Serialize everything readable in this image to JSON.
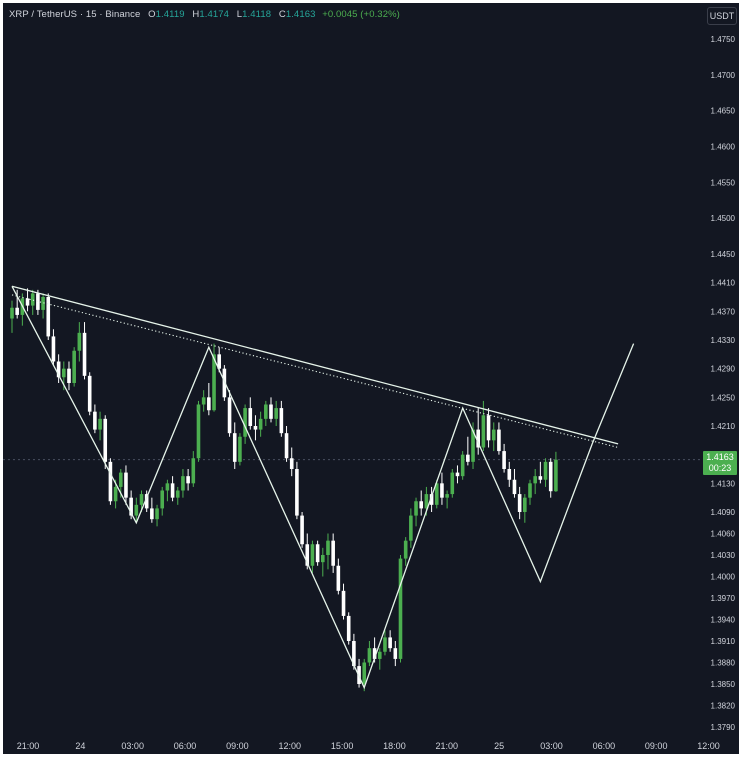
{
  "header": {
    "symbol": "XRP / TetherUS · 15 · Binance",
    "open_label": "O",
    "open": "1.4119",
    "high_label": "H",
    "high": "1.4174",
    "low_label": "L",
    "low": "1.4118",
    "close_label": "C",
    "close": "1.4163",
    "change": "+0.0045 (+0.32%)"
  },
  "currency": "USDT",
  "last_price": {
    "price": "1.4163",
    "countdown": "00:23"
  },
  "colors": {
    "background": "#131722",
    "up": "#4caf50",
    "down": "#ffffff",
    "pattern_line": "#e6f4ea",
    "grid": "#1c2030"
  },
  "chart_data": {
    "type": "candlestick",
    "title": "",
    "xlabel": "",
    "ylabel": "",
    "ylim": [
      1.3775,
      1.477
    ],
    "y_ticks": [
      "1.4750",
      "1.4700",
      "1.4650",
      "1.4600",
      "1.4550",
      "1.4500",
      "1.4450",
      "1.4410",
      "1.4370",
      "1.4330",
      "1.4290",
      "1.4250",
      "1.4210",
      "1.4130",
      "1.4090",
      "1.4060",
      "1.4030",
      "1.4000",
      "1.3970",
      "1.3940",
      "1.3910",
      "1.3880",
      "1.3850",
      "1.3820",
      "1.3790"
    ],
    "x_ticks": [
      "21:00",
      "24",
      "03:00",
      "06:00",
      "09:00",
      "12:00",
      "15:00",
      "18:00",
      "21:00",
      "25",
      "03:00",
      "06:00",
      "09:00",
      "12:00"
    ],
    "grid": false,
    "last_close": 1.4163,
    "candles": [
      [
        1.436,
        1.4385,
        1.434,
        1.4375
      ],
      [
        1.4375,
        1.44,
        1.436,
        1.4365
      ],
      [
        1.4365,
        1.4395,
        1.435,
        1.4388
      ],
      [
        1.4388,
        1.4402,
        1.437,
        1.4378
      ],
      [
        1.4378,
        1.44,
        1.4365,
        1.4395
      ],
      [
        1.4395,
        1.44,
        1.4365,
        1.4372
      ],
      [
        1.4372,
        1.4395,
        1.436,
        1.439
      ],
      [
        1.439,
        1.4395,
        1.433,
        1.4335
      ],
      [
        1.4335,
        1.4345,
        1.4295,
        1.43
      ],
      [
        1.43,
        1.431,
        1.427,
        1.4278
      ],
      [
        1.4278,
        1.43,
        1.426,
        1.429
      ],
      [
        1.429,
        1.43,
        1.426,
        1.427
      ],
      [
        1.427,
        1.432,
        1.4265,
        1.4315
      ],
      [
        1.4315,
        1.4355,
        1.43,
        1.434
      ],
      [
        1.434,
        1.4355,
        1.4275,
        1.428
      ],
      [
        1.428,
        1.4285,
        1.4225,
        1.423
      ],
      [
        1.423,
        1.424,
        1.42,
        1.4205
      ],
      [
        1.4205,
        1.423,
        1.419,
        1.422
      ],
      [
        1.422,
        1.4225,
        1.415,
        1.416
      ],
      [
        1.416,
        1.4165,
        1.41,
        1.4105
      ],
      [
        1.4105,
        1.4135,
        1.4095,
        1.4125
      ],
      [
        1.4125,
        1.415,
        1.411,
        1.4145
      ],
      [
        1.4145,
        1.4155,
        1.41,
        1.411
      ],
      [
        1.411,
        1.412,
        1.408,
        1.4085
      ],
      [
        1.4085,
        1.411,
        1.4075,
        1.41
      ],
      [
        1.41,
        1.412,
        1.409,
        1.4115
      ],
      [
        1.4115,
        1.412,
        1.409,
        1.4095
      ],
      [
        1.4095,
        1.411,
        1.4075,
        1.408
      ],
      [
        1.408,
        1.41,
        1.407,
        1.4095
      ],
      [
        1.4095,
        1.4125,
        1.4085,
        1.412
      ],
      [
        1.412,
        1.4135,
        1.4105,
        1.413
      ],
      [
        1.413,
        1.414,
        1.4105,
        1.411
      ],
      [
        1.411,
        1.4125,
        1.41,
        1.412
      ],
      [
        1.412,
        1.415,
        1.411,
        1.414
      ],
      [
        1.414,
        1.415,
        1.412,
        1.413
      ],
      [
        1.413,
        1.4175,
        1.4125,
        1.4165
      ],
      [
        1.4165,
        1.4245,
        1.416,
        1.424
      ],
      [
        1.424,
        1.426,
        1.423,
        1.425
      ],
      [
        1.425,
        1.427,
        1.4225,
        1.4232
      ],
      [
        1.4232,
        1.4325,
        1.423,
        1.431
      ],
      [
        1.431,
        1.432,
        1.4285,
        1.429
      ],
      [
        1.429,
        1.4295,
        1.4245,
        1.425
      ],
      [
        1.425,
        1.426,
        1.4195,
        1.42
      ],
      [
        1.42,
        1.4215,
        1.415,
        1.416
      ],
      [
        1.416,
        1.42,
        1.4155,
        1.4195
      ],
      [
        1.4195,
        1.424,
        1.4185,
        1.4235
      ],
      [
        1.4235,
        1.425,
        1.4205,
        1.421
      ],
      [
        1.421,
        1.4225,
        1.419,
        1.4205
      ],
      [
        1.4205,
        1.423,
        1.4195,
        1.422
      ],
      [
        1.422,
        1.4245,
        1.421,
        1.424
      ],
      [
        1.424,
        1.425,
        1.4215,
        1.422
      ],
      [
        1.422,
        1.4245,
        1.421,
        1.4235
      ],
      [
        1.4235,
        1.4245,
        1.4195,
        1.42
      ],
      [
        1.42,
        1.421,
        1.416,
        1.4165
      ],
      [
        1.4165,
        1.418,
        1.414,
        1.415
      ],
      [
        1.415,
        1.416,
        1.408,
        1.4085
      ],
      [
        1.4085,
        1.409,
        1.404,
        1.4045
      ],
      [
        1.4045,
        1.406,
        1.401,
        1.4015
      ],
      [
        1.4015,
        1.405,
        1.4005,
        1.4045
      ],
      [
        1.4045,
        1.405,
        1.4015,
        1.402
      ],
      [
        1.402,
        1.404,
        1.4,
        1.403
      ],
      [
        1.403,
        1.406,
        1.401,
        1.405
      ],
      [
        1.405,
        1.406,
        1.4005,
        1.4015
      ],
      [
        1.4015,
        1.4025,
        1.3975,
        1.398
      ],
      [
        1.398,
        1.399,
        1.394,
        1.3945
      ],
      [
        1.3945,
        1.395,
        1.3905,
        1.391
      ],
      [
        1.391,
        1.392,
        1.387,
        1.3875
      ],
      [
        1.3875,
        1.3885,
        1.3845,
        1.385
      ],
      [
        1.385,
        1.3885,
        1.384,
        1.388
      ],
      [
        1.388,
        1.391,
        1.3875,
        1.39
      ],
      [
        1.39,
        1.3915,
        1.388,
        1.3885
      ],
      [
        1.3885,
        1.39,
        1.387,
        1.3895
      ],
      [
        1.3895,
        1.3925,
        1.389,
        1.3915
      ],
      [
        1.3915,
        1.3925,
        1.3895,
        1.39
      ],
      [
        1.39,
        1.391,
        1.3875,
        1.3885
      ],
      [
        1.3885,
        1.403,
        1.388,
        1.4025
      ],
      [
        1.4025,
        1.4055,
        1.4015,
        1.405
      ],
      [
        1.405,
        1.4095,
        1.404,
        1.4085
      ],
      [
        1.4085,
        1.411,
        1.407,
        1.4105
      ],
      [
        1.4105,
        1.412,
        1.4085,
        1.4095
      ],
      [
        1.4095,
        1.4125,
        1.4085,
        1.4115
      ],
      [
        1.4115,
        1.4125,
        1.409,
        1.41
      ],
      [
        1.41,
        1.4135,
        1.4095,
        1.413
      ],
      [
        1.413,
        1.4145,
        1.41,
        1.411
      ],
      [
        1.411,
        1.412,
        1.4095,
        1.4115
      ],
      [
        1.4115,
        1.415,
        1.411,
        1.4145
      ],
      [
        1.4145,
        1.4155,
        1.413,
        1.414
      ],
      [
        1.414,
        1.4175,
        1.4135,
        1.417
      ],
      [
        1.417,
        1.4195,
        1.4155,
        1.416
      ],
      [
        1.416,
        1.4215,
        1.415,
        1.4205
      ],
      [
        1.4205,
        1.4235,
        1.417,
        1.418
      ],
      [
        1.418,
        1.4245,
        1.4175,
        1.4225
      ],
      [
        1.4225,
        1.4235,
        1.418,
        1.419
      ],
      [
        1.419,
        1.4215,
        1.4175,
        1.4205
      ],
      [
        1.4205,
        1.4215,
        1.417,
        1.4175
      ],
      [
        1.4175,
        1.4185,
        1.4145,
        1.415
      ],
      [
        1.415,
        1.416,
        1.4125,
        1.4135
      ],
      [
        1.4135,
        1.415,
        1.411,
        1.4115
      ],
      [
        1.4115,
        1.4125,
        1.408,
        1.409
      ],
      [
        1.409,
        1.4115,
        1.4075,
        1.411
      ],
      [
        1.411,
        1.4135,
        1.41,
        1.413
      ],
      [
        1.413,
        1.415,
        1.4115,
        1.414
      ],
      [
        1.414,
        1.416,
        1.413,
        1.4135
      ],
      [
        1.4135,
        1.4165,
        1.4125,
        1.416
      ],
      [
        1.416,
        1.4165,
        1.411,
        1.4119
      ],
      [
        1.4119,
        1.4174,
        1.4118,
        1.4163
      ]
    ],
    "pattern_lines": [
      {
        "name": "neckline",
        "style": "solid",
        "points": [
          [
            0,
            1.4405
          ],
          [
            117,
            1.4185
          ]
        ]
      },
      {
        "name": "dotted-trendline",
        "style": "dotted",
        "points": [
          [
            0,
            1.4393
          ],
          [
            117,
            1.418
          ]
        ]
      },
      {
        "name": "zigzag",
        "style": "solid",
        "points": [
          [
            0,
            1.4405
          ],
          [
            24,
            1.4075
          ],
          [
            38,
            1.432
          ],
          [
            68,
            1.3845
          ],
          [
            87,
            1.4235
          ],
          [
            102,
            1.3993
          ],
          [
            112,
            1.4185
          ],
          [
            120,
            1.4325
          ]
        ]
      }
    ]
  }
}
